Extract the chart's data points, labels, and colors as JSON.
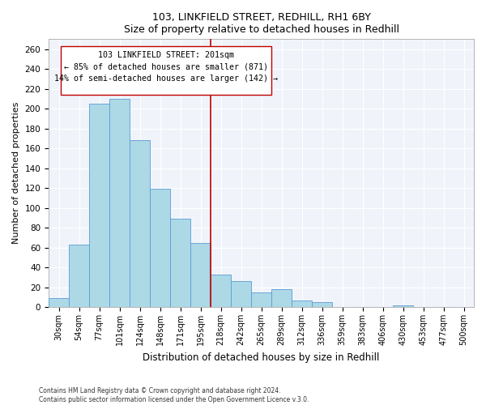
{
  "title1": "103, LINKFIELD STREET, REDHILL, RH1 6BY",
  "title2": "Size of property relative to detached houses in Redhill",
  "xlabel": "Distribution of detached houses by size in Redhill",
  "ylabel": "Number of detached properties",
  "bar_labels": [
    "30sqm",
    "54sqm",
    "77sqm",
    "101sqm",
    "124sqm",
    "148sqm",
    "171sqm",
    "195sqm",
    "218sqm",
    "242sqm",
    "265sqm",
    "289sqm",
    "312sqm",
    "336sqm",
    "359sqm",
    "383sqm",
    "406sqm",
    "430sqm",
    "453sqm",
    "477sqm",
    "500sqm"
  ],
  "bar_heights": [
    9,
    63,
    205,
    210,
    168,
    119,
    89,
    65,
    33,
    26,
    15,
    18,
    7,
    5,
    0,
    0,
    0,
    2,
    0,
    0,
    0
  ],
  "bar_color": "#add8e6",
  "bar_edge_color": "#5b9bd5",
  "annotation_text_line1": "103 LINKFIELD STREET: 201sqm",
  "annotation_text_line2": "← 85% of detached houses are smaller (871)",
  "annotation_text_line3": "14% of semi-detached houses are larger (142) →",
  "vline_color": "#c00000",
  "box_edge_color": "#c00000",
  "ylim": [
    0,
    270
  ],
  "yticks": [
    0,
    20,
    40,
    60,
    80,
    100,
    120,
    140,
    160,
    180,
    200,
    220,
    240,
    260
  ],
  "footer1": "Contains HM Land Registry data © Crown copyright and database right 2024.",
  "footer2": "Contains public sector information licensed under the Open Government Licence v.3.0.",
  "bg_color": "#f0f4f8"
}
